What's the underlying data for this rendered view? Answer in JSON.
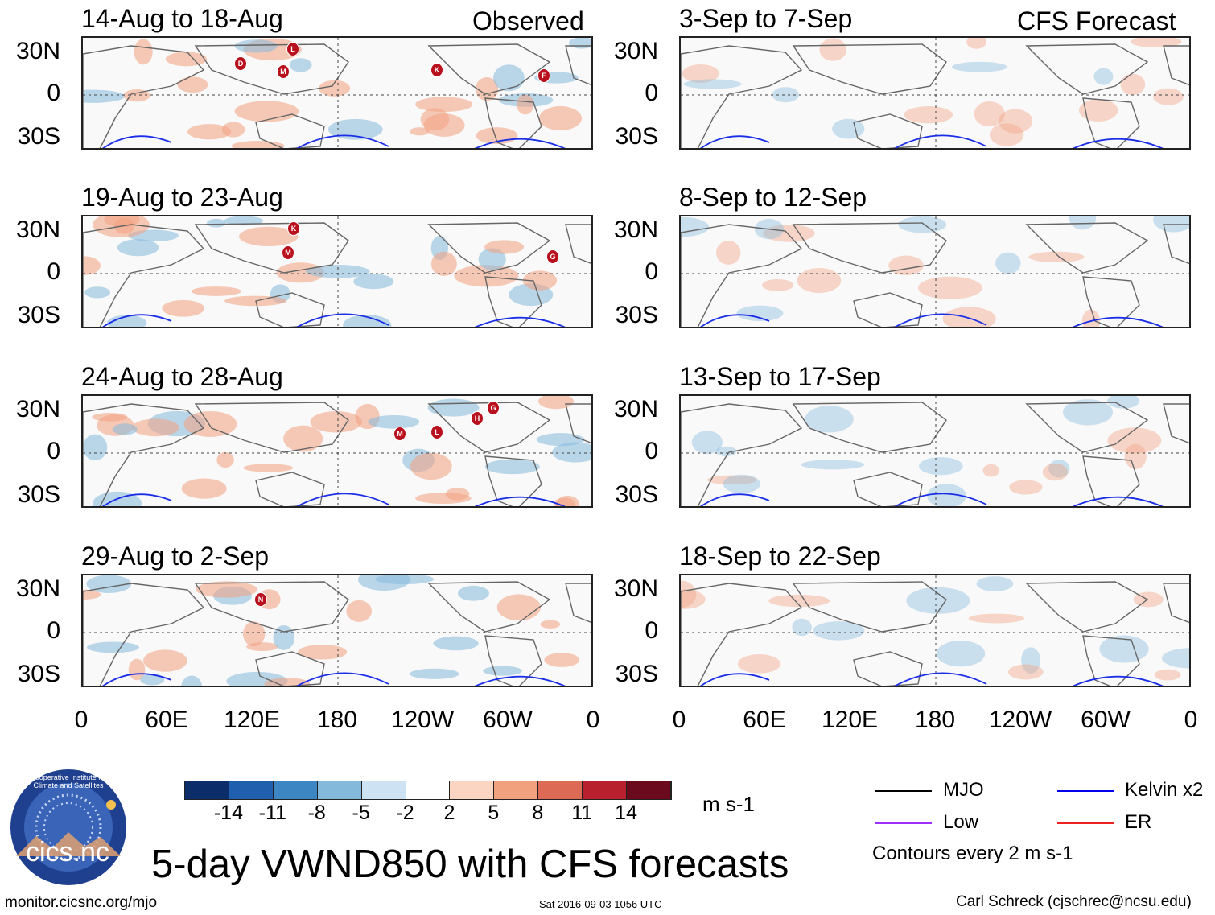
{
  "observed_label": "Observed",
  "forecast_label": "CFS Forecast",
  "lat_labels": [
    "30N",
    "0",
    "30S"
  ],
  "lon_labels": [
    "0",
    "60E",
    "120E",
    "180",
    "120W",
    "60W",
    "0"
  ],
  "panels_left": [
    {
      "title": "14-Aug to 18-Aug",
      "storms": [
        "D",
        "L",
        "M",
        "K",
        "F"
      ]
    },
    {
      "title": "19-Aug to 23-Aug",
      "storms": [
        "K",
        "M",
        "G"
      ]
    },
    {
      "title": "24-Aug to 28-Aug",
      "storms": [
        "M",
        "L",
        "H",
        "G"
      ]
    },
    {
      "title": "29-Aug to 2-Sep",
      "storms": [
        "N"
      ]
    }
  ],
  "panels_right": [
    {
      "title": "3-Sep to 7-Sep"
    },
    {
      "title": "8-Sep to 12-Sep"
    },
    {
      "title": "13-Sep to 17-Sep"
    },
    {
      "title": "18-Sep to 22-Sep"
    }
  ],
  "colorbar": {
    "colors": [
      "#0b2e6b",
      "#1f5fae",
      "#3d86c4",
      "#85b9dc",
      "#cde2f2",
      "#ffffff",
      "#fcd5c2",
      "#f2a17f",
      "#dc6a55",
      "#b8202d",
      "#6b0a1d"
    ],
    "ticks": [
      "-14",
      "-11",
      "-8",
      "-5",
      "-2",
      "2",
      "5",
      "8",
      "11",
      "14"
    ],
    "units": "m s-1"
  },
  "legend": {
    "items": [
      {
        "label": "MJO",
        "color": "#000000"
      },
      {
        "label": "Kelvin x2",
        "color": "#0000ee"
      },
      {
        "label": "Low",
        "color": "#9b30ff"
      },
      {
        "label": "ER",
        "color": "#ee2222"
      }
    ],
    "contour_note": "Contours every 2 m s-1"
  },
  "main_title": "5-day VWND850 with CFS forecasts",
  "logo_text": "cics.nc",
  "logo_ring_text": "Cooperative Institute for Climate and Satellites",
  "footer": {
    "url": "monitor.cicsnc.org/mjo",
    "timestamp": "Sat 2016-09-03 1056 UTC",
    "author": "Carl Schreck (cjschrec@ncsu.edu)"
  }
}
